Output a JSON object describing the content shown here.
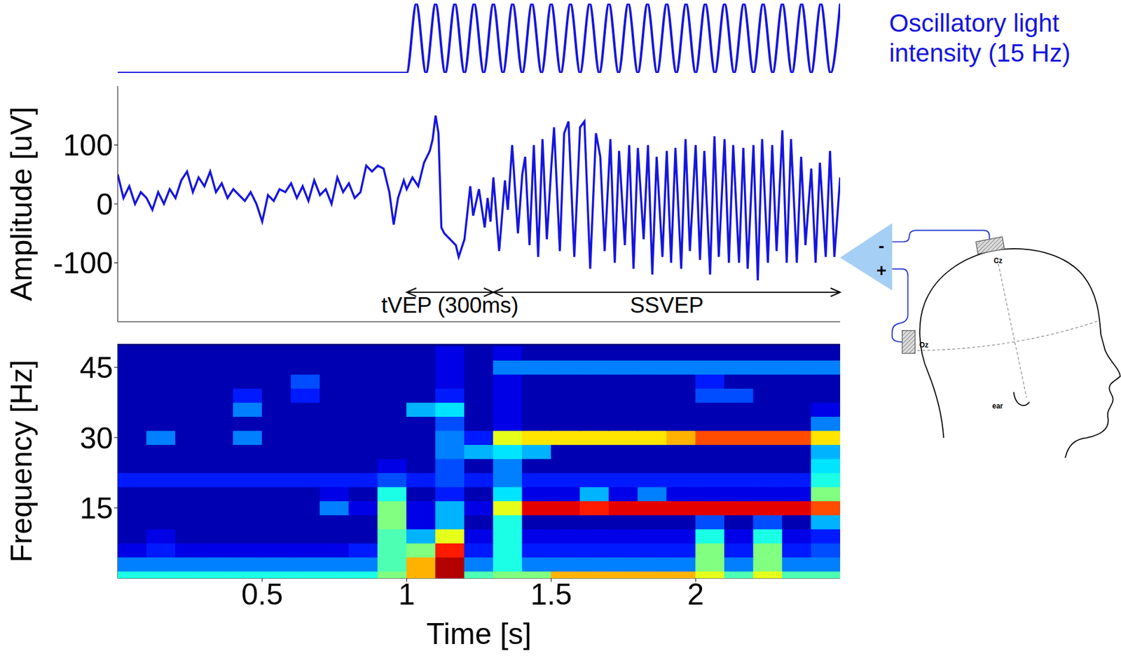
{
  "chart_data": [
    {
      "type": "line",
      "annotation": "Oscillatory light intensity (15 Hz)",
      "tick_labels": false,
      "color": "#1515e0",
      "x": [
        0,
        1,
        1.0333,
        1.0667,
        1.1,
        1.1333,
        1.1667,
        1.2,
        1.2333,
        1.2667,
        1.3,
        1.3333,
        1.3667,
        1.4,
        1.4333,
        1.4667,
        1.5,
        1.5333,
        1.5667,
        1.6,
        1.6333,
        1.6667,
        1.7,
        1.7333,
        1.7667,
        1.8,
        1.8333,
        1.8667,
        1.9,
        1.9333,
        1.9667,
        2,
        2.0333,
        2.0667,
        2.1,
        2.1333,
        2.1667,
        2.2,
        2.2333,
        2.2667,
        2.3,
        2.3333,
        2.3667,
        2.4,
        2.4333,
        2.4667,
        2.5
      ],
      "values": [
        0,
        0,
        1,
        0,
        1,
        0,
        1,
        0,
        1,
        0,
        1,
        0,
        1,
        0,
        1,
        0,
        1,
        0,
        1,
        0,
        1,
        0,
        1,
        0,
        1,
        0,
        1,
        0,
        1,
        0,
        1,
        0,
        1,
        0,
        1,
        0,
        1,
        0,
        1,
        0,
        1,
        0,
        1,
        0,
        1,
        0,
        1
      ]
    },
    {
      "type": "line",
      "ylabel": "Amplitude [uV]",
      "xlim": [
        0,
        2.5
      ],
      "xticks": [
        0.5,
        1,
        1.5,
        2
      ],
      "ylim": [
        -200,
        200
      ],
      "yticks": [
        -100,
        0,
        100
      ],
      "tick_labels": "y",
      "color": "#1515e0",
      "x": [
        0,
        0.02,
        0.04,
        0.06,
        0.08,
        0.1,
        0.12,
        0.14,
        0.16,
        0.18,
        0.2,
        0.22,
        0.24,
        0.26,
        0.28,
        0.3,
        0.32,
        0.34,
        0.36,
        0.38,
        0.4,
        0.42,
        0.44,
        0.46,
        0.48,
        0.5,
        0.52,
        0.54,
        0.56,
        0.58,
        0.6,
        0.62,
        0.64,
        0.66,
        0.68,
        0.7,
        0.72,
        0.74,
        0.76,
        0.78,
        0.8,
        0.82,
        0.84,
        0.86,
        0.88,
        0.9,
        0.92,
        0.94,
        0.955,
        0.97,
        0.99,
        1,
        1.02,
        1.04,
        1.06,
        1.08,
        1.09,
        1.1,
        1.11,
        1.12,
        1.13,
        1.15,
        1.17,
        1.18,
        1.2,
        1.22,
        1.23,
        1.25,
        1.27,
        1.28,
        1.29,
        1.3,
        1.32,
        1.34,
        1.35,
        1.365,
        1.385,
        1.4,
        1.41,
        1.425,
        1.44,
        1.455,
        1.47,
        1.485,
        1.5,
        1.51,
        1.53,
        1.545,
        1.56,
        1.58,
        1.6,
        1.615,
        1.635,
        1.655,
        1.67,
        1.685,
        1.705,
        1.72,
        1.735,
        1.755,
        1.77,
        1.785,
        1.8,
        1.82,
        1.835,
        1.85,
        1.865,
        1.885,
        1.9,
        1.915,
        1.93,
        1.95,
        1.965,
        1.98,
        2,
        2.015,
        2.03,
        2.05,
        2.065,
        2.08,
        2.1,
        2.115,
        2.13,
        2.15,
        2.165,
        2.18,
        2.2,
        2.215,
        2.23,
        2.25,
        2.265,
        2.28,
        2.3,
        2.315,
        2.33,
        2.35,
        2.365,
        2.38,
        2.4,
        2.415,
        2.43,
        2.45,
        2.465,
        2.48,
        2.5
      ],
      "values": [
        50,
        10,
        30,
        0,
        20,
        10,
        -10,
        20,
        0,
        25,
        10,
        40,
        55,
        20,
        45,
        30,
        55,
        20,
        35,
        10,
        25,
        15,
        5,
        20,
        0,
        -30,
        15,
        5,
        25,
        20,
        35,
        10,
        30,
        5,
        40,
        15,
        25,
        0,
        45,
        20,
        35,
        10,
        20,
        65,
        55,
        65,
        60,
        20,
        -35,
        10,
        40,
        25,
        45,
        30,
        70,
        90,
        110,
        150,
        120,
        -40,
        -50,
        -60,
        -70,
        -90,
        -60,
        30,
        -20,
        25,
        -40,
        10,
        -30,
        45,
        -80,
        40,
        -10,
        100,
        -50,
        50,
        80,
        -70,
        100,
        -90,
        110,
        -60,
        60,
        130,
        -80,
        120,
        140,
        -90,
        130,
        140,
        -110,
        120,
        80,
        -80,
        110,
        -100,
        90,
        -70,
        100,
        -110,
        95,
        -60,
        100,
        -120,
        80,
        -90,
        90,
        -100,
        95,
        -110,
        110,
        -80,
        100,
        -95,
        90,
        -120,
        115,
        -90,
        110,
        -100,
        100,
        -100,
        95,
        -110,
        100,
        -130,
        110,
        -100,
        100,
        -80,
        125,
        -100,
        110,
        -100,
        80,
        -70,
        60,
        -100,
        70,
        -90,
        90,
        -90,
        45
      ],
      "annotations": [
        {
          "text": "tVEP (300ms)",
          "x": [
            1,
            1.3
          ]
        },
        {
          "text": "SSVEP",
          "x": [
            1.3,
            2.5
          ]
        }
      ]
    },
    {
      "type": "heatmap",
      "xlabel": "Time [s]",
      "ylabel": "Frequency [Hz]",
      "xlim": [
        0,
        2.5
      ],
      "xticks": [
        0.5,
        1,
        1.5,
        2
      ],
      "ylim": [
        0,
        50
      ],
      "yticks": [
        15,
        30,
        45
      ],
      "color_range": [
        0,
        20
      ],
      "x": [
        0.05,
        0.15,
        0.25,
        0.35,
        0.45,
        0.55,
        0.65,
        0.75,
        0.85,
        0.95,
        1.05,
        1.15,
        1.25,
        1.35,
        1.45,
        1.55,
        1.65,
        1.75,
        1.85,
        1.95,
        2.05,
        2.15,
        2.25,
        2.35,
        2.45
      ],
      "y": [
        0,
        3,
        6,
        9,
        12,
        15,
        18,
        21,
        24,
        27,
        30,
        33,
        36,
        39,
        42,
        45,
        48
      ],
      "z": [
        [
          8,
          8,
          8,
          8,
          8,
          8,
          8,
          8,
          8,
          10,
          14,
          19,
          9,
          10,
          10,
          14,
          14,
          14,
          14,
          14,
          12,
          9,
          12,
          9,
          9
        ],
        [
          5,
          5,
          5,
          5,
          5,
          5,
          5,
          5,
          5,
          9,
          14,
          19,
          5,
          8,
          5,
          5,
          5,
          5,
          5,
          5,
          10,
          5,
          10,
          5,
          5
        ],
        [
          2,
          3,
          2,
          2,
          2,
          2,
          2,
          2,
          3,
          9,
          10,
          17,
          3,
          8,
          3,
          3,
          3,
          3,
          3,
          3,
          10,
          3,
          10,
          3,
          4
        ],
        [
          1,
          2,
          1,
          1,
          1,
          1,
          1,
          1,
          1,
          9,
          6,
          12,
          2,
          8,
          2,
          2,
          2,
          2,
          2,
          2,
          8,
          2,
          8,
          2,
          3
        ],
        [
          1,
          1,
          1,
          1,
          1,
          1,
          1,
          1,
          1,
          10,
          2,
          6,
          1,
          8,
          1,
          1,
          1,
          1,
          1,
          1,
          4,
          1,
          4,
          1,
          6
        ],
        [
          1,
          1,
          1,
          1,
          1,
          1,
          1,
          5,
          2,
          10,
          2,
          6,
          2,
          12,
          18,
          18,
          17,
          18,
          18,
          18,
          18,
          18,
          18,
          18,
          16
        ],
        [
          1,
          1,
          1,
          1,
          1,
          1,
          1,
          2,
          1,
          8,
          1,
          3,
          1,
          7,
          2,
          2,
          6,
          2,
          5,
          2,
          2,
          2,
          2,
          2,
          10
        ],
        [
          3,
          3,
          3,
          3,
          3,
          3,
          3,
          3,
          3,
          4,
          3,
          4,
          3,
          5,
          3,
          3,
          3,
          3,
          3,
          3,
          3,
          3,
          3,
          3,
          8
        ],
        [
          1,
          1,
          1,
          1,
          1,
          1,
          1,
          1,
          1,
          2,
          1,
          4,
          1,
          5,
          1,
          1,
          1,
          1,
          1,
          1,
          1,
          1,
          1,
          1,
          7
        ],
        [
          1,
          1,
          1,
          1,
          1,
          1,
          1,
          1,
          1,
          1,
          1,
          5,
          6,
          7,
          6,
          1,
          1,
          1,
          1,
          1,
          1,
          1,
          1,
          1,
          6
        ],
        [
          1,
          5,
          1,
          1,
          5,
          1,
          1,
          1,
          1,
          1,
          1,
          5,
          3,
          12,
          13,
          13,
          13,
          13,
          13,
          14,
          16,
          16,
          16,
          16,
          13
        ],
        [
          1,
          1,
          1,
          1,
          1,
          1,
          1,
          1,
          1,
          1,
          1,
          4,
          1,
          2,
          1,
          1,
          1,
          1,
          1,
          1,
          1,
          1,
          1,
          1,
          5
        ],
        [
          1,
          1,
          1,
          1,
          5,
          1,
          1,
          1,
          1,
          1,
          6,
          7,
          1,
          2,
          1,
          1,
          1,
          1,
          1,
          1,
          1,
          1,
          1,
          1,
          2
        ],
        [
          1,
          1,
          1,
          1,
          3,
          1,
          3,
          1,
          1,
          1,
          1,
          3,
          1,
          2,
          1,
          1,
          1,
          1,
          1,
          1,
          4,
          4,
          1,
          1,
          1
        ],
        [
          1,
          1,
          1,
          1,
          1,
          1,
          4,
          1,
          1,
          1,
          1,
          2,
          1,
          2,
          1,
          1,
          1,
          1,
          1,
          1,
          3,
          1,
          1,
          1,
          1
        ],
        [
          1,
          1,
          1,
          1,
          1,
          1,
          1,
          1,
          1,
          1,
          1,
          2,
          1,
          5,
          5,
          5,
          5,
          5,
          5,
          5,
          5,
          5,
          5,
          5,
          5
        ],
        [
          1,
          1,
          1,
          1,
          1,
          1,
          1,
          1,
          1,
          1,
          1,
          2,
          1,
          2,
          1,
          1,
          1,
          1,
          1,
          1,
          1,
          1,
          1,
          1,
          1
        ]
      ]
    }
  ],
  "diagram": {
    "amplifier": [
      "-",
      "+"
    ],
    "electrodes": [
      "Cz",
      "Oz"
    ],
    "landmark": "ear"
  }
}
